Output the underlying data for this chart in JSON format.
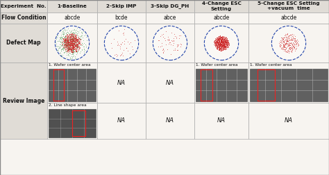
{
  "col_headers": [
    "Experiment  No.",
    "1-Baseline",
    "2-Skip IMP",
    "3-Skip DG_PH",
    "4-Change ESC\nSetting",
    "5-Change ESC Setting\n+vacuum  time"
  ],
  "flow_conditions": [
    "abcde",
    "bcde",
    "abce",
    "abcde",
    "abcde"
  ],
  "review_row1_labels": [
    "1. Wafer center area",
    "NA",
    "NA",
    "1. Wafer center area",
    "1. Wafer center area"
  ],
  "review_row2_labels": [
    "2. Line shape area",
    "NA",
    "NA",
    "NA",
    "NA"
  ],
  "bg_color": "#f0ede8",
  "cell_bg": "#f7f4f0",
  "header_bg": "#e0dcd6",
  "border_color": "#aaaaaa",
  "text_color": "#111111",
  "col_lefts": [
    0,
    68,
    140,
    210,
    280,
    358
  ],
  "col_rights": [
    68,
    140,
    210,
    280,
    358,
    474
  ],
  "row_tops": [
    0,
    18,
    34,
    90,
    148,
    200
  ],
  "row_bottoms": [
    18,
    34,
    90,
    148,
    200,
    252
  ]
}
